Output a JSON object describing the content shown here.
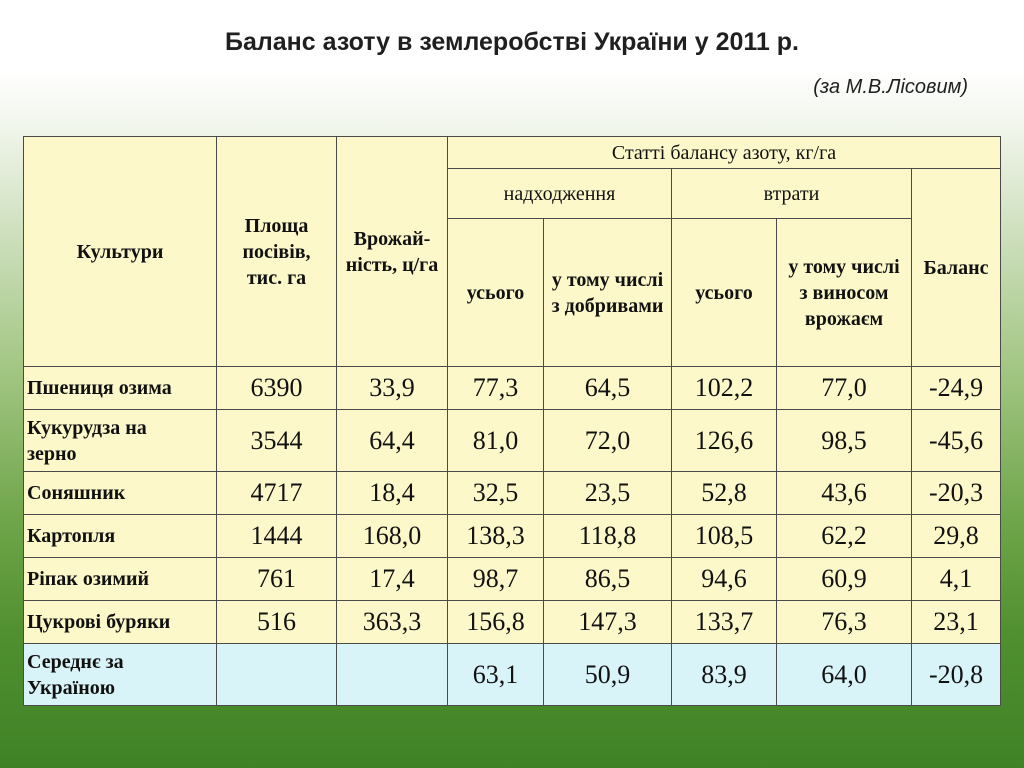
{
  "title": "Баланс азоту в землеробстві України у 2011 р.",
  "subtitle": "(за М.В.Лісовим)",
  "table": {
    "headers": {
      "crops": "Культури",
      "area": "Площа посівів, тис. га",
      "yield": "Врожай-ність, ц/га",
      "group": "Статті балансу азоту, кг/га",
      "income": "надходження",
      "losses": "втрати",
      "balance": "Баланс",
      "income_total": "усього",
      "income_fert": "у тому числі з добривами",
      "losses_total": "усього",
      "losses_harvest": "у тому числі з виносом врожаєм"
    },
    "rows": [
      {
        "crop": "Пшениця озима",
        "area": "6390",
        "yield": "33,9",
        "income_total": "77,3",
        "income_fert": "64,5",
        "losses_total": "102,2",
        "losses_harvest": "77,0",
        "balance": "-24,9"
      },
      {
        "crop": "Кукурудза на зерно",
        "area": "3544",
        "yield": "64,4",
        "income_total": "81,0",
        "income_fert": "72,0",
        "losses_total": "126,6",
        "losses_harvest": "98,5",
        "balance": "-45,6"
      },
      {
        "crop": "Соняшник",
        "area": "4717",
        "yield": "18,4",
        "income_total": "32,5",
        "income_fert": "23,5",
        "losses_total": "52,8",
        "losses_harvest": "43,6",
        "balance": "-20,3"
      },
      {
        "crop": "Картопля",
        "area": "1444",
        "yield": "168,0",
        "income_total": "138,3",
        "income_fert": "118,8",
        "losses_total": "108,5",
        "losses_harvest": "62,2",
        "balance": "29,8"
      },
      {
        "crop": "Ріпак озимий",
        "area": "761",
        "yield": "17,4",
        "income_total": "98,7",
        "income_fert": "86,5",
        "losses_total": "94,6",
        "losses_harvest": "60,9",
        "balance": "4,1"
      },
      {
        "crop": "Цукрові буряки",
        "area": "516",
        "yield": "363,3",
        "income_total": "156,8",
        "income_fert": "147,3",
        "losses_total": "133,7",
        "losses_harvest": "76,3",
        "balance": "23,1"
      }
    ],
    "average": {
      "crop": "Середнє за Україною",
      "area": "",
      "yield": "",
      "income_total": "63,1",
      "income_fert": "50,9",
      "losses_total": "83,9",
      "losses_harvest": "64,0",
      "balance": "-20,8"
    }
  },
  "colors": {
    "cell_background": "#fdf8c9",
    "average_row_background": "#d9f4f8",
    "background_top": "#ffffff",
    "background_bottom": "#3f8226"
  }
}
